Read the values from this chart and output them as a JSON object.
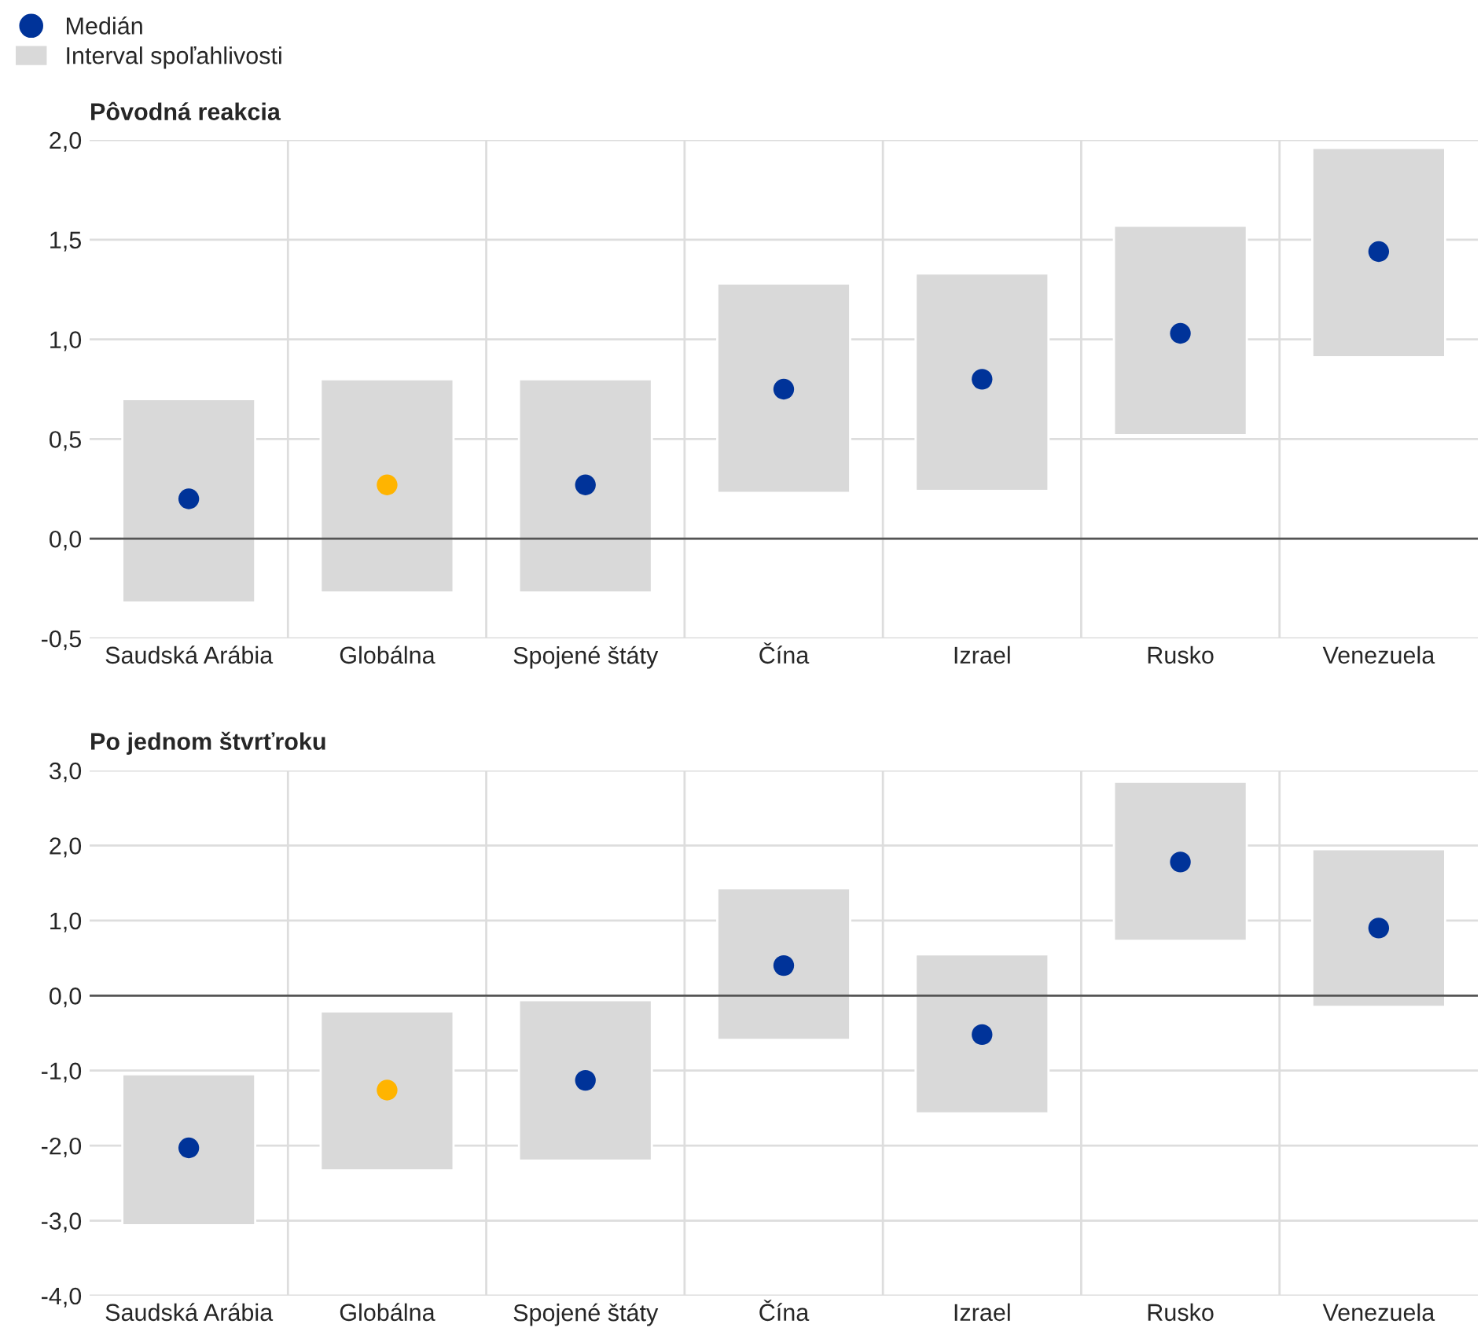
{
  "chart_data": [
    {
      "type": "bar",
      "title": "Pôvodná reakcia",
      "categories": [
        "Saudská Arábia",
        "Globálna",
        "Spojené štáty",
        "Čína",
        "Izrael",
        "Rusko",
        "Venezuela"
      ],
      "series": [
        {
          "name": "Medián",
          "type": "scatter",
          "color": "#003399",
          "colors": [
            "#003399",
            "#ffb400",
            "#003399",
            "#003399",
            "#003399",
            "#003399",
            "#003399"
          ],
          "values": [
            0.2,
            0.27,
            0.27,
            0.75,
            0.8,
            1.03,
            1.44
          ]
        },
        {
          "name": "Interval spoľahlivosti",
          "color": "#d9d9d9",
          "base": [
            -0.32,
            -0.27,
            -0.27,
            0.23,
            0.24,
            0.52,
            0.91
          ],
          "values": [
            1.02,
            1.07,
            1.07,
            1.05,
            1.09,
            1.05,
            1.05
          ]
        }
      ],
      "ylim": [
        -0.5,
        2.0
      ],
      "yticks": [
        {
          "value": -0.5,
          "label": "-0,5"
        },
        {
          "value": 0,
          "label": "0,0"
        },
        {
          "value": 0.5,
          "label": "0,5"
        },
        {
          "value": 1.0,
          "label": "1,0"
        },
        {
          "value": 1.5,
          "label": "1,5"
        },
        {
          "value": 2.0,
          "label": "2,0"
        }
      ],
      "ref_lines": [
        {
          "axis": "y",
          "value": 0,
          "color": "#555555"
        }
      ],
      "grid": true,
      "legend": "top left",
      "marker": "circle"
    },
    {
      "type": "bar",
      "title": "Po jednom štvrťroku",
      "categories": [
        "Saudská Arábia",
        "Globálna",
        "Spojené štáty",
        "Čína",
        "Izrael",
        "Rusko",
        "Venezuela"
      ],
      "series": [
        {
          "color": "#d9d9d9",
          "base": [
            -3.06,
            -2.33,
            -2.2,
            -0.59,
            -1.57,
            0.73,
            -0.15
          ],
          "values": [
            2.01,
            2.12,
            2.14,
            2.02,
            2.12,
            2.12,
            2.1
          ]
        },
        {
          "type": "scatter",
          "color": "#003399",
          "colors": [
            "#003399",
            "#ffb400",
            "#003399",
            "#003399",
            "#003399",
            "#003399",
            "#003399"
          ],
          "values": [
            -2.03,
            -1.26,
            -1.13,
            0.4,
            -0.52,
            1.78,
            0.9
          ]
        }
      ],
      "ylim": [
        -4.0,
        3.0
      ],
      "yticks": [
        {
          "value": -4,
          "label": "-4,0"
        },
        {
          "value": -3,
          "label": "-3,0"
        },
        {
          "value": -2,
          "label": "-2,0"
        },
        {
          "value": -1,
          "label": "-1,0"
        },
        {
          "value": 0,
          "label": "0,0"
        },
        {
          "value": 1,
          "label": "1,0"
        },
        {
          "value": 2,
          "label": "2,0"
        },
        {
          "value": 3,
          "label": "3,0"
        }
      ],
      "ref_lines": [
        {
          "axis": "y",
          "value": 0,
          "color": "#555555"
        }
      ],
      "grid": true,
      "marker": "circle"
    }
  ]
}
